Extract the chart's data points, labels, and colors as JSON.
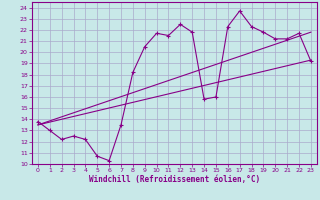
{
  "xlabel": "Windchill (Refroidissement éolien,°C)",
  "bg_color": "#c8e8e8",
  "grid_color": "#aaaacc",
  "line_color": "#880088",
  "xlim": [
    -0.5,
    23.5
  ],
  "ylim": [
    10,
    24.5
  ],
  "yticks": [
    10,
    11,
    12,
    13,
    14,
    15,
    16,
    17,
    18,
    19,
    20,
    21,
    22,
    23,
    24
  ],
  "xticks": [
    0,
    1,
    2,
    3,
    4,
    5,
    6,
    7,
    8,
    9,
    10,
    11,
    12,
    13,
    14,
    15,
    16,
    17,
    18,
    19,
    20,
    21,
    22,
    23
  ],
  "line1_x": [
    0,
    1,
    2,
    3,
    4,
    5,
    6,
    7,
    8,
    9,
    10,
    11,
    12,
    13,
    14,
    15,
    16,
    17,
    18,
    19,
    20,
    21,
    22,
    23
  ],
  "line1_y": [
    13.8,
    13.0,
    12.2,
    12.5,
    12.2,
    10.7,
    10.3,
    13.5,
    18.2,
    20.5,
    21.7,
    21.5,
    22.5,
    21.8,
    15.8,
    16.0,
    22.3,
    23.7,
    22.3,
    21.8,
    21.2,
    21.2,
    21.7,
    19.2
  ],
  "line2_x": [
    0,
    23
  ],
  "line2_y": [
    13.5,
    19.3
  ],
  "line3_x": [
    0,
    23
  ],
  "line3_y": [
    13.5,
    21.8
  ]
}
